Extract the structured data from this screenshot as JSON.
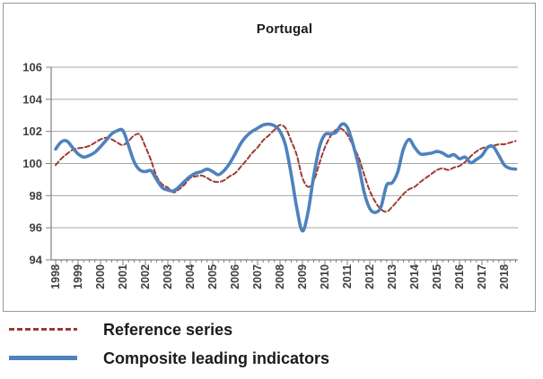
{
  "chart_data": {
    "type": "line",
    "title": "Portugal",
    "xlabel": "",
    "ylabel": "",
    "ylim": [
      94,
      106
    ],
    "y_ticks": [
      94,
      96,
      98,
      100,
      102,
      104,
      106
    ],
    "x_ticks": [
      1998,
      1999,
      2000,
      2001,
      2002,
      2003,
      2004,
      2005,
      2006,
      2007,
      2008,
      2009,
      2010,
      2011,
      2012,
      2013,
      2014,
      2015,
      2016,
      2017,
      2018
    ],
    "x_start": 1998.0,
    "x_step": 0.25,
    "grid": "horizontal-on",
    "legend_position": "below-chart-left",
    "colors": {
      "grid": "#a6a6a6",
      "axis": "#808080",
      "tick_label": "#404040"
    },
    "series": [
      {
        "name": "Reference series",
        "style": "dashed",
        "color": "#9e3a32",
        "values": [
          99.9,
          100.3,
          100.6,
          100.85,
          100.95,
          101.0,
          101.1,
          101.3,
          101.5,
          101.6,
          101.5,
          101.3,
          101.15,
          101.4,
          101.75,
          101.8,
          101.05,
          100.2,
          99.2,
          98.7,
          98.5,
          98.2,
          98.4,
          98.7,
          99.1,
          99.2,
          99.25,
          99.1,
          98.9,
          98.85,
          98.95,
          99.2,
          99.4,
          99.8,
          100.2,
          100.65,
          101.0,
          101.45,
          101.75,
          102.1,
          102.4,
          102.2,
          101.4,
          100.5,
          99.1,
          98.55,
          98.9,
          100.0,
          101.0,
          101.7,
          102.1,
          102.15,
          101.8,
          101.1,
          100.4,
          99.3,
          98.3,
          97.6,
          97.15,
          97.0,
          97.3,
          97.7,
          98.1,
          98.4,
          98.55,
          98.85,
          99.1,
          99.35,
          99.6,
          99.7,
          99.6,
          99.75,
          99.85,
          100.1,
          100.45,
          100.75,
          100.95,
          101.05,
          101.1,
          101.2,
          101.2,
          101.3,
          101.4
        ]
      },
      {
        "name": "Composite leading indicators",
        "style": "solid",
        "color": "#4f81bd",
        "values": [
          100.9,
          101.35,
          101.4,
          101.0,
          100.6,
          100.4,
          100.5,
          100.7,
          101.05,
          101.45,
          101.85,
          102.05,
          102.05,
          101.1,
          100.1,
          99.6,
          99.5,
          99.55,
          99.0,
          98.5,
          98.35,
          98.3,
          98.55,
          98.9,
          99.2,
          99.4,
          99.5,
          99.65,
          99.5,
          99.3,
          99.55,
          100.0,
          100.6,
          101.25,
          101.7,
          102.0,
          102.2,
          102.4,
          102.45,
          102.35,
          102.0,
          101.1,
          99.3,
          97.2,
          95.8,
          97.0,
          99.2,
          101.0,
          101.8,
          101.85,
          101.95,
          102.45,
          102.25,
          101.2,
          99.9,
          98.2,
          97.2,
          96.95,
          97.3,
          98.65,
          98.8,
          99.5,
          100.9,
          101.5,
          101.0,
          100.6,
          100.6,
          100.65,
          100.75,
          100.65,
          100.45,
          100.55,
          100.3,
          100.4,
          100.05,
          100.25,
          100.5,
          101.0,
          101.05,
          100.5,
          99.9,
          99.7,
          99.65
        ]
      }
    ]
  },
  "legend": {
    "items": [
      {
        "label": "Reference series"
      },
      {
        "label": "Composite leading indicators"
      }
    ]
  }
}
